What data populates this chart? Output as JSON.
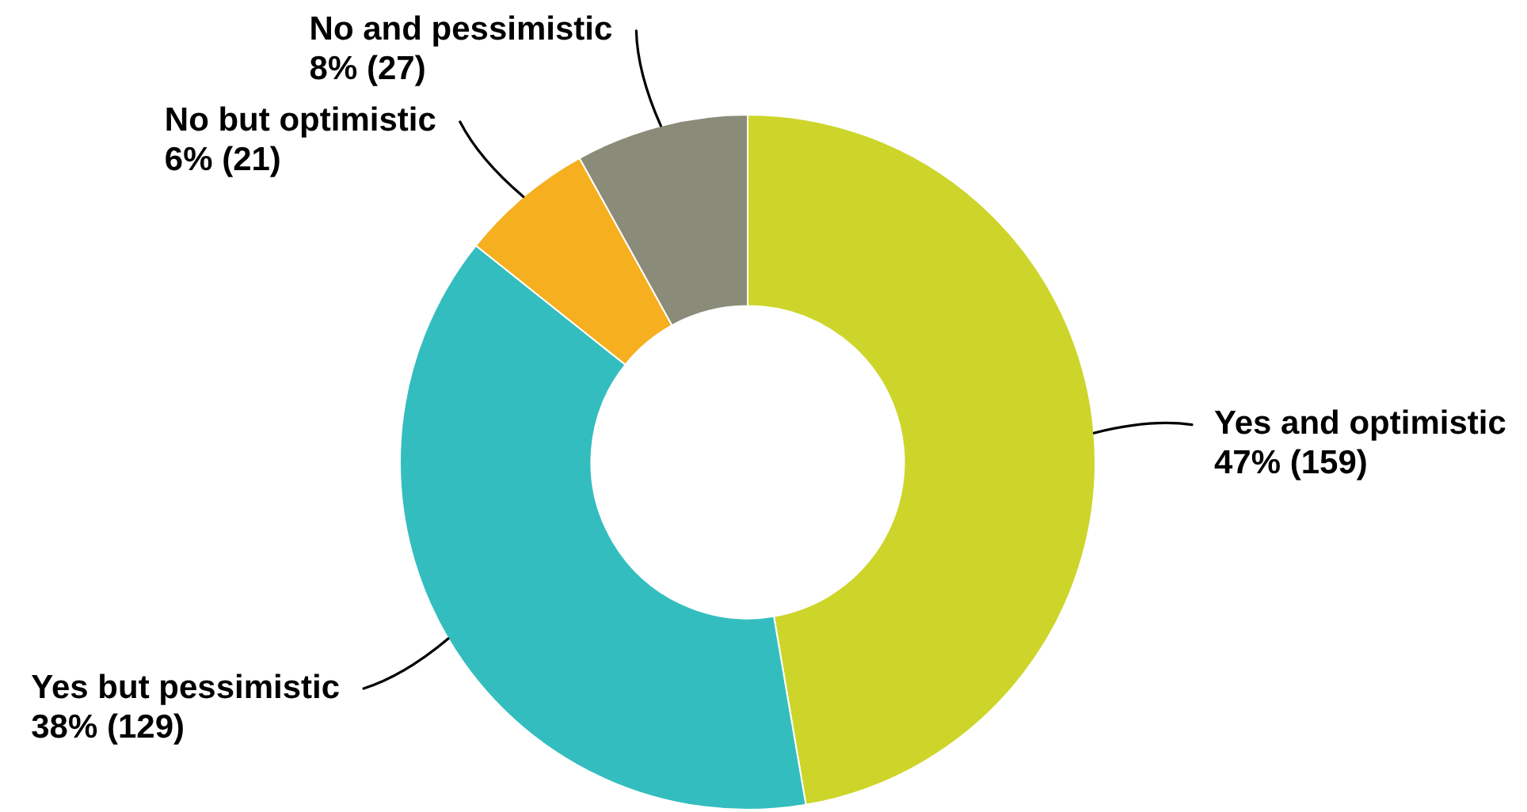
{
  "chart_data": {
    "type": "donut",
    "categories": [
      "Yes and optimistic",
      "Yes but pessimistic",
      "No but optimistic",
      "No and pessimistic"
    ],
    "values": [
      159,
      129,
      21,
      27
    ],
    "colors": [
      "#cdd52a",
      "#34bdbf",
      "#f6af1f",
      "#8b8b79"
    ],
    "value_labels": [
      "47% (159)",
      "38% (129)",
      "6% (21)",
      "8% (27)"
    ]
  }
}
